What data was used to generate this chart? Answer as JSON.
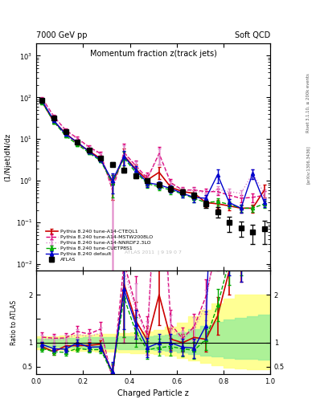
{
  "title_top_left": "7000 GeV pp",
  "title_top_right": "Soft QCD",
  "title_main": "Momentum fraction z(track jets)",
  "ylabel_main": "(1/Njet)dN/dz",
  "ylabel_ratio": "Ratio to ATLAS",
  "xlabel": "Charged Particle z",
  "right_label": "Rivet 3.1.10, ≥ 200k events",
  "watermark": "ATLAS 2011  | 9 19 0 7",
  "arxiv_label": "[arXiv:1306.3436]",
  "xlim": [
    0.0,
    1.0
  ],
  "ylim_main": [
    0.007,
    2000
  ],
  "ylim_ratio": [
    0.35,
    2.5
  ],
  "atlas_x": [
    0.025,
    0.075,
    0.125,
    0.175,
    0.225,
    0.275,
    0.325,
    0.375,
    0.425,
    0.475,
    0.525,
    0.575,
    0.625,
    0.675,
    0.725,
    0.775,
    0.825,
    0.875,
    0.925,
    0.975
  ],
  "atlas_y": [
    85,
    32,
    15,
    8.5,
    5.5,
    3.5,
    2.5,
    1.8,
    1.3,
    1.0,
    0.8,
    0.65,
    0.55,
    0.45,
    0.28,
    0.18,
    0.1,
    0.075,
    0.06,
    0.07
  ],
  "atlas_yerr": [
    8,
    3,
    1.5,
    0.8,
    0.5,
    0.35,
    0.25,
    0.2,
    0.15,
    0.12,
    0.1,
    0.1,
    0.08,
    0.07,
    0.06,
    0.05,
    0.04,
    0.03,
    0.03,
    0.04
  ],
  "py_def_y": [
    82,
    28,
    13,
    8.5,
    5.0,
    3.2,
    1.0,
    3.8,
    1.8,
    0.9,
    0.8,
    0.65,
    0.5,
    0.4,
    0.38,
    1.4,
    0.3,
    0.22,
    1.5,
    0.3
  ],
  "py_def_yerr": [
    5,
    2,
    1.0,
    0.6,
    0.4,
    0.3,
    0.5,
    1.5,
    0.4,
    0.2,
    0.15,
    0.12,
    0.1,
    0.09,
    0.08,
    0.5,
    0.06,
    0.05,
    0.4,
    0.07
  ],
  "py_cteq_y": [
    78,
    26,
    14,
    8.0,
    5.2,
    3.4,
    0.85,
    4.0,
    1.9,
    1.05,
    1.6,
    0.7,
    0.55,
    0.5,
    0.3,
    0.28,
    0.25,
    0.22,
    0.22,
    0.6
  ],
  "py_cteq_yerr": [
    5,
    2,
    1.0,
    0.6,
    0.4,
    0.3,
    0.5,
    2.0,
    0.5,
    0.3,
    0.5,
    0.15,
    0.1,
    0.1,
    0.07,
    0.07,
    0.05,
    0.05,
    0.05,
    0.2
  ],
  "py_mstw_y": [
    95,
    35,
    16.5,
    10.5,
    6.5,
    4.5,
    0.6,
    4.8,
    2.3,
    1.15,
    4.5,
    0.9,
    0.6,
    0.6,
    0.55,
    0.55,
    0.45,
    0.38,
    0.4,
    0.45
  ],
  "py_mstw_yerr": [
    8,
    3,
    1.5,
    1.0,
    0.6,
    0.5,
    0.8,
    3.0,
    0.8,
    0.4,
    2.0,
    0.2,
    0.12,
    0.12,
    0.1,
    0.1,
    0.08,
    0.08,
    0.1,
    0.12
  ],
  "py_nnpdf_y": [
    92,
    34,
    16,
    10.0,
    6.2,
    4.2,
    0.7,
    4.5,
    2.2,
    1.1,
    4.2,
    0.85,
    0.58,
    0.58,
    0.5,
    0.62,
    0.55,
    0.5,
    1.5,
    0.5
  ],
  "py_nnpdf_yerr": [
    7,
    3,
    1.5,
    0.9,
    0.5,
    0.4,
    0.7,
    2.5,
    0.7,
    0.35,
    1.8,
    0.18,
    0.11,
    0.11,
    0.09,
    0.12,
    0.1,
    0.1,
    0.4,
    0.12
  ],
  "py_cuetp_y": [
    75,
    26,
    12,
    7.5,
    4.7,
    3.0,
    0.9,
    3.5,
    1.6,
    0.85,
    0.72,
    0.6,
    0.48,
    0.38,
    0.3,
    0.32,
    0.27,
    0.22,
    0.22,
    0.28
  ],
  "py_cuetp_yerr": [
    5,
    2,
    1.0,
    0.6,
    0.3,
    0.25,
    0.5,
    1.5,
    0.4,
    0.18,
    0.14,
    0.12,
    0.09,
    0.08,
    0.06,
    0.06,
    0.05,
    0.04,
    0.04,
    0.06
  ],
  "color_atlas": "#000000",
  "color_default": "#0000cc",
  "color_cteq": "#cc0000",
  "color_mstw": "#dd0077",
  "color_nnpdf": "#dd88cc",
  "color_cuetp": "#00aa00",
  "ratio_yellow_x": [
    0.0,
    0.05,
    0.1,
    0.15,
    0.2,
    0.25,
    0.3,
    0.35,
    0.4,
    0.45,
    0.5,
    0.55,
    0.6,
    0.65,
    0.7,
    0.75,
    0.8,
    0.85,
    0.9,
    0.95,
    1.0
  ],
  "ratio_yellow_lo": [
    0.87,
    0.86,
    0.85,
    0.84,
    0.83,
    0.82,
    0.81,
    0.8,
    0.79,
    0.78,
    0.77,
    0.73,
    0.68,
    0.63,
    0.58,
    0.53,
    0.48,
    0.46,
    0.45,
    0.45,
    0.45
  ],
  "ratio_yellow_hi": [
    1.13,
    1.14,
    1.15,
    1.16,
    1.17,
    1.18,
    1.19,
    1.2,
    1.22,
    1.24,
    1.26,
    1.33,
    1.42,
    1.55,
    1.68,
    1.82,
    1.92,
    2.0,
    2.0,
    2.0,
    2.0
  ],
  "ratio_green_x": [
    0.0,
    0.05,
    0.1,
    0.15,
    0.2,
    0.25,
    0.3,
    0.35,
    0.4,
    0.45,
    0.5,
    0.55,
    0.6,
    0.65,
    0.7,
    0.75,
    0.8,
    0.85,
    0.9,
    0.95,
    1.0
  ],
  "ratio_green_lo": [
    0.91,
    0.91,
    0.9,
    0.9,
    0.89,
    0.89,
    0.88,
    0.87,
    0.87,
    0.86,
    0.85,
    0.83,
    0.8,
    0.77,
    0.74,
    0.71,
    0.68,
    0.67,
    0.66,
    0.65,
    0.65
  ],
  "ratio_green_hi": [
    1.09,
    1.09,
    1.1,
    1.1,
    1.11,
    1.11,
    1.12,
    1.13,
    1.13,
    1.14,
    1.15,
    1.17,
    1.22,
    1.28,
    1.35,
    1.43,
    1.48,
    1.52,
    1.55,
    1.58,
    1.6
  ]
}
